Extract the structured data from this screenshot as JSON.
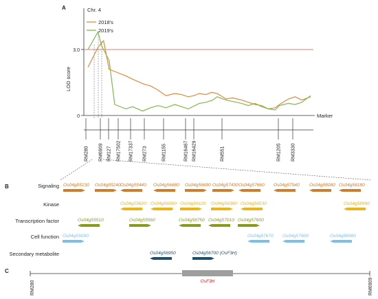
{
  "panels": {
    "a": "A",
    "b": "B",
    "c": "C"
  },
  "colors": {
    "orange": "#e08a3c",
    "green": "#7fb84a",
    "threshold": "#d9534f",
    "signaling": "#cc7d2e",
    "kinase": "#e8b51a",
    "tf": "#8a9a1e",
    "cell": "#7fbfe6",
    "secondary": "#1f4e6b",
    "osf3h": "#d2232a"
  },
  "chart_data": {
    "type": "line",
    "title": "",
    "chr_label": "Chr. 4",
    "ylabel": "LOD score",
    "xlabel": "Marker",
    "ylim": [
      0,
      4
    ],
    "yticks": [
      "3.0",
      "0"
    ],
    "threshold": 3.0,
    "series": [
      {
        "name": "2018's",
        "x": [
          0,
          0.045,
          0.07,
          0.095,
          0.12,
          0.17,
          0.2,
          0.245,
          0.26,
          0.28,
          0.315,
          0.35,
          0.39,
          0.42,
          0.45,
          0.475,
          0.5,
          0.53,
          0.555,
          0.58,
          0.62,
          0.65,
          0.69,
          0.72,
          0.75,
          0.78,
          0.81,
          0.84,
          0.86,
          0.9,
          0.93,
          0.96,
          1.0
        ],
        "values": [
          2.2,
          3.1,
          3.4,
          2.1,
          2.0,
          1.8,
          1.65,
          1.45,
          1.4,
          1.35,
          1.15,
          0.9,
          1.0,
          0.95,
          0.85,
          0.9,
          1.0,
          0.95,
          1.05,
          1.0,
          0.75,
          0.8,
          0.7,
          0.6,
          0.5,
          0.45,
          0.3,
          0.35,
          0.5,
          0.75,
          0.85,
          0.7,
          0.85
        ]
      },
      {
        "name": "2019's",
        "x": [
          0,
          0.045,
          0.06,
          0.095,
          0.12,
          0.17,
          0.2,
          0.245,
          0.28,
          0.315,
          0.35,
          0.39,
          0.45,
          0.5,
          0.53,
          0.56,
          0.58,
          0.62,
          0.69,
          0.72,
          0.75,
          0.78,
          0.81,
          0.84,
          0.86,
          0.9,
          0.93,
          0.96,
          1.0
        ],
        "values": [
          3.0,
          3.8,
          3.2,
          2.5,
          0.5,
          0.3,
          0.4,
          0.2,
          0.35,
          0.45,
          0.35,
          0.5,
          0.3,
          0.55,
          0.6,
          0.7,
          0.85,
          0.7,
          0.55,
          0.45,
          0.55,
          0.4,
          0.3,
          0.25,
          0.45,
          0.55,
          0.5,
          0.6,
          0.9
        ]
      }
    ],
    "markers": [
      "RM280",
      "RM6909",
      "RM127",
      "RM17502",
      "RM17337",
      "RM273",
      "RM1155",
      "RM16467",
      "RM16429",
      "RM551",
      "RM1205",
      "RM3330"
    ]
  },
  "categories": [
    {
      "label": "Signaling",
      "color_key": "signaling",
      "genes": [
        "Os04g55230",
        "Os04g55240",
        "Os04g55440",
        "Os04g56680",
        "Os04g56690",
        "Os04g57430",
        "Os04g57660",
        "Os04g57940",
        "Os04g58080",
        "Os04g58180"
      ]
    },
    {
      "label": "Kinase",
      "color_key": "kinase",
      "genes": [
        "Os04g55620",
        "Os04g56060",
        "Os04g56110",
        "Os04g56360",
        "Os04g56530",
        "Os04g58990"
      ]
    },
    {
      "label": "Transcription factor",
      "color_key": "tf",
      "genes": [
        "Os04g55510",
        "Os04g55560",
        "Os04g56750",
        "Os04g57010",
        "Os04g57600"
      ]
    },
    {
      "label": "Cell function",
      "color_key": "cell",
      "genes": [
        "Os04g55090",
        "Os04g57670",
        "Os04g57900",
        "Os04g58980"
      ]
    },
    {
      "label": "Secondary metabolite",
      "color_key": "secondary",
      "genes": [
        "Os04g56950",
        "Os04g56700 (OsF3H)"
      ]
    }
  ],
  "panel_c": {
    "left_marker": "RM280",
    "right_marker": "RM6909",
    "gene": "OsF3H"
  }
}
